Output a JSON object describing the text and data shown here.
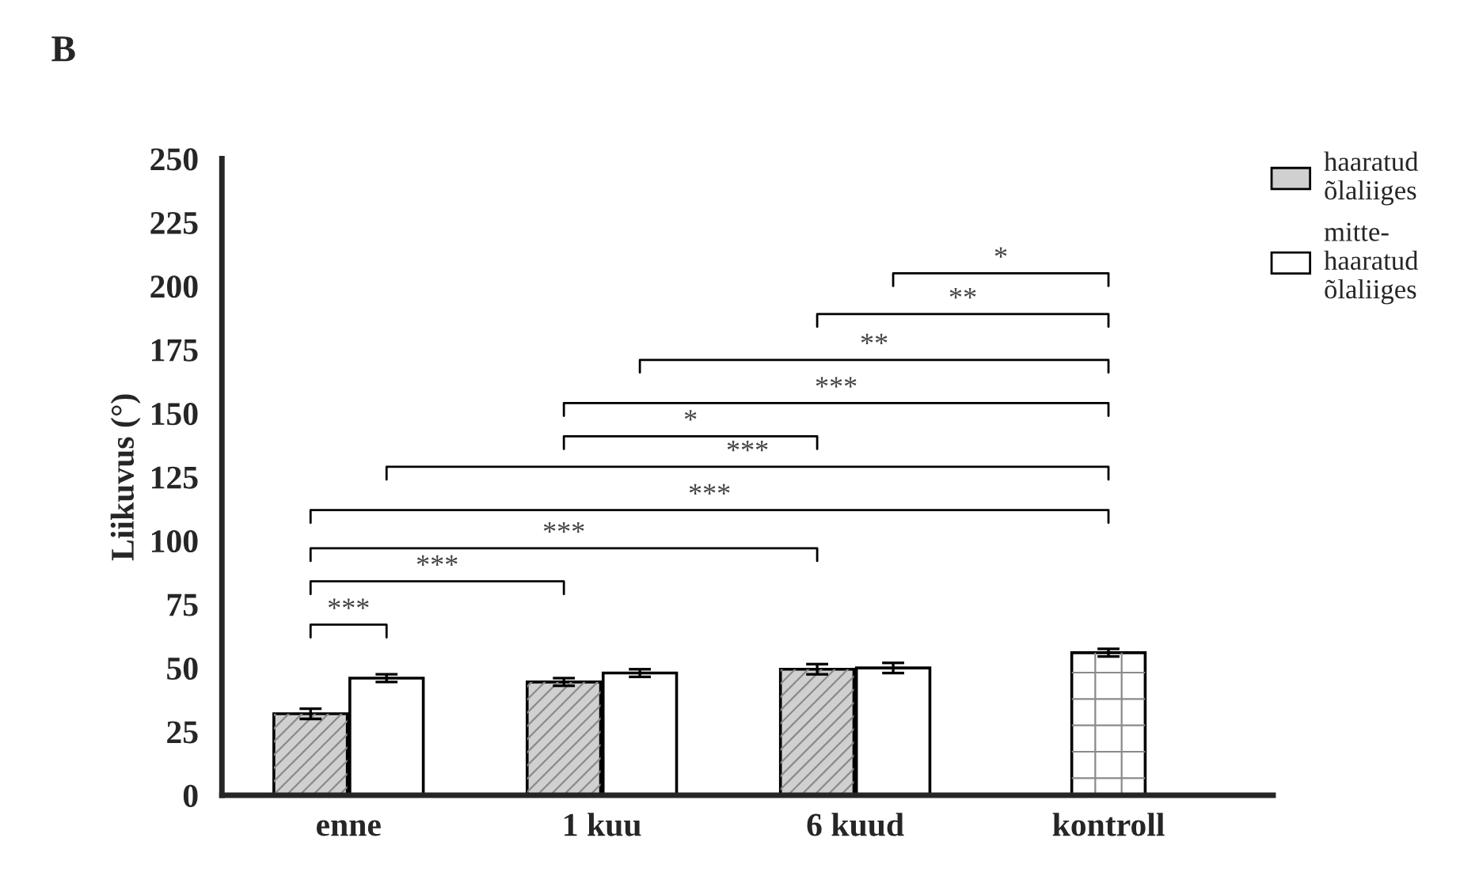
{
  "chart_data": {
    "type": "bar",
    "categories": [
      "enne",
      "1 kuu",
      "6 kuud",
      "kontroll"
    ],
    "ylabel": "Liikuvus (°)",
    "ylim": [
      0,
      250
    ],
    "yticks": [
      0,
      25,
      50,
      75,
      100,
      125,
      150,
      175,
      200,
      225,
      250
    ],
    "series": [
      {
        "name": "haaratud\nõlaliiges",
        "color": "#d0d0d0",
        "values": [
          32,
          44.5,
          49.5,
          null
        ],
        "errors": [
          2,
          1.5,
          2,
          null
        ]
      },
      {
        "name": "mitte-\nhaaratud\nõlaliiges",
        "color": "#ffffff",
        "values": [
          46,
          48,
          50,
          null
        ],
        "errors": [
          1.5,
          1.5,
          2,
          null
        ]
      },
      {
        "color": "#ffffff",
        "values": [
          null,
          null,
          null,
          56
        ],
        "errors": [
          null,
          null,
          null,
          1.5
        ]
      }
    ],
    "annotations": [
      "B",
      "***",
      "***",
      "***",
      "***",
      "***",
      "*",
      "***",
      "**",
      "**",
      "*"
    ],
    "legend": "top right",
    "grid": false
  }
}
